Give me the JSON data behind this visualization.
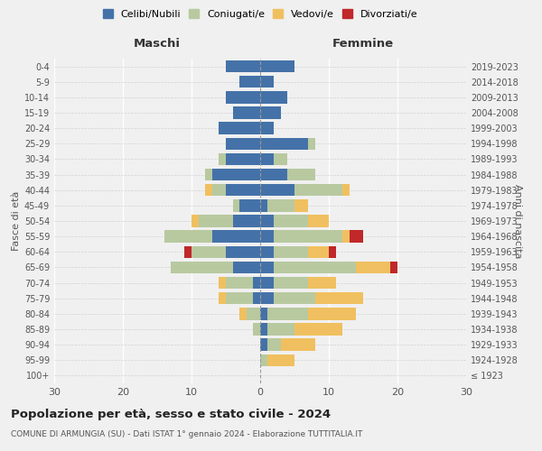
{
  "age_groups": [
    "100+",
    "95-99",
    "90-94",
    "85-89",
    "80-84",
    "75-79",
    "70-74",
    "65-69",
    "60-64",
    "55-59",
    "50-54",
    "45-49",
    "40-44",
    "35-39",
    "30-34",
    "25-29",
    "20-24",
    "15-19",
    "10-14",
    "5-9",
    "0-4"
  ],
  "birth_years": [
    "≤ 1923",
    "1924-1928",
    "1929-1933",
    "1934-1938",
    "1939-1943",
    "1944-1948",
    "1949-1953",
    "1954-1958",
    "1959-1963",
    "1964-1968",
    "1969-1973",
    "1974-1978",
    "1979-1983",
    "1984-1988",
    "1989-1993",
    "1994-1998",
    "1999-2003",
    "2004-2008",
    "2009-2013",
    "2014-2018",
    "2019-2023"
  ],
  "colors": {
    "celibi": "#4472a8",
    "coniugati": "#b8c9a0",
    "vedovi": "#f0c060",
    "divorziati": "#c0282a"
  },
  "maschi": {
    "celibi": [
      0,
      0,
      0,
      0,
      0,
      1,
      1,
      4,
      5,
      7,
      4,
      3,
      5,
      7,
      5,
      5,
      6,
      4,
      5,
      3,
      5
    ],
    "coniugati": [
      0,
      0,
      0,
      1,
      2,
      4,
      4,
      9,
      5,
      7,
      5,
      1,
      2,
      1,
      1,
      0,
      0,
      0,
      0,
      0,
      0
    ],
    "vedovi": [
      0,
      0,
      0,
      0,
      1,
      1,
      1,
      0,
      0,
      0,
      1,
      0,
      1,
      0,
      0,
      0,
      0,
      0,
      0,
      0,
      0
    ],
    "divorziati": [
      0,
      0,
      0,
      0,
      0,
      0,
      0,
      0,
      1,
      0,
      0,
      0,
      0,
      0,
      0,
      0,
      0,
      0,
      0,
      0,
      0
    ]
  },
  "femmine": {
    "celibi": [
      0,
      0,
      1,
      1,
      1,
      2,
      2,
      2,
      2,
      2,
      2,
      1,
      5,
      4,
      2,
      7,
      2,
      3,
      4,
      2,
      5
    ],
    "coniugati": [
      0,
      1,
      2,
      4,
      6,
      6,
      5,
      12,
      5,
      10,
      5,
      4,
      7,
      4,
      2,
      1,
      0,
      0,
      0,
      0,
      0
    ],
    "vedovi": [
      0,
      4,
      5,
      7,
      7,
      7,
      4,
      5,
      3,
      1,
      3,
      2,
      1,
      0,
      0,
      0,
      0,
      0,
      0,
      0,
      0
    ],
    "divorziati": [
      0,
      0,
      0,
      0,
      0,
      0,
      0,
      1,
      1,
      2,
      0,
      0,
      0,
      0,
      0,
      0,
      0,
      0,
      0,
      0,
      0
    ]
  },
  "title": "Popolazione per età, sesso e stato civile - 2024",
  "subtitle": "COMUNE DI ARMUNGIA (SU) - Dati ISTAT 1° gennaio 2024 - Elaborazione TUTTITALIA.IT",
  "xlabel_left": "Maschi",
  "xlabel_right": "Femmine",
  "ylabel_left": "Fasce di età",
  "ylabel_right": "Anni di nascita",
  "xlim": 30,
  "legend_labels": [
    "Celibi/Nubili",
    "Coniugati/e",
    "Vedovi/e",
    "Divorziati/e"
  ],
  "background_color": "#f0f0f0"
}
